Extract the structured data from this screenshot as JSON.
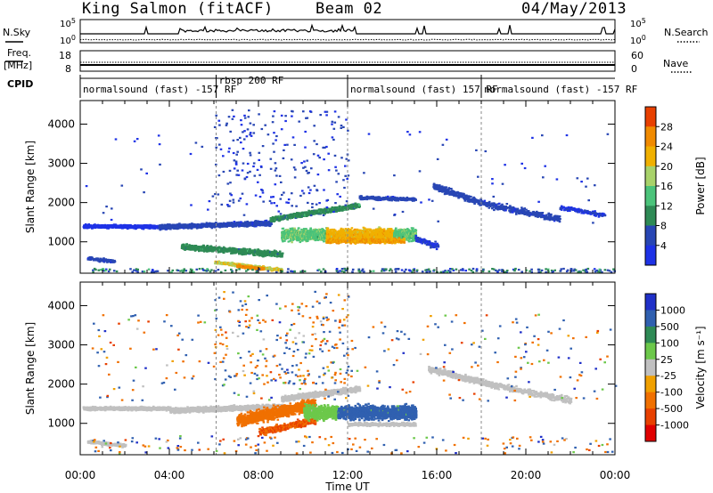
{
  "header": {
    "station": "King Salmon (fitACF)",
    "beam": "Beam 02",
    "date": "04/May/2013"
  },
  "strip": {
    "nsky_label": "N.Sky",
    "nsearch_label": "N.Search",
    "freq_label_1": "Freq.",
    "freq_label_2": "[MHz]",
    "nave_label": "Nave",
    "cpid_label": "CPID",
    "noise_left_ticks": [
      "10^5",
      "10^0"
    ],
    "noise_right_ticks": [
      "10^5",
      "10^0"
    ],
    "freq_ticks": [
      "18",
      "8"
    ],
    "nave_ticks": [
      "60",
      "0"
    ]
  },
  "cpid_segments": [
    {
      "label": "normalsound (fast) -157 RF",
      "start": 0.0,
      "end": 6.1
    },
    {
      "label": "rbsp 200 RF",
      "start": 6.1,
      "end": 12.0
    },
    {
      "label": "normalsound (fast) 157 RF",
      "start": 12.0,
      "end": 18.0
    },
    {
      "label": "normalsound (fast) -157 RF",
      "start": 18.0,
      "end": 24.0
    }
  ],
  "chart_data": [
    {
      "type": "heatmap",
      "name": "power",
      "ylabel": "Slant Range [km]",
      "xlim": [
        0,
        24
      ],
      "ylim": [
        200,
        4600
      ],
      "yticks": [
        "1000",
        "2000",
        "3000",
        "4000"
      ],
      "colorbar_label": "Power [dB]",
      "colorbar_ticks": [
        "4",
        "8",
        "12",
        "16",
        "20",
        "24",
        "28"
      ],
      "colorbar_range": [
        0,
        32
      ],
      "colors": [
        "#1e32e6",
        "#2846b4",
        "#2e8a55",
        "#4bc37a",
        "#a8d26a",
        "#f0b000",
        "#f08a00",
        "#e84000",
        "#e00000"
      ]
    },
    {
      "type": "heatmap",
      "name": "velocity",
      "ylabel": "Slant Range [km]",
      "xlabel": "Time UT",
      "xlim": [
        0,
        24
      ],
      "ylim": [
        200,
        4600
      ],
      "yticks": [
        "1000",
        "2000",
        "3000",
        "4000"
      ],
      "xticks": [
        "00:00",
        "04:00",
        "08:00",
        "12:00",
        "16:00",
        "20:00",
        "00:00"
      ],
      "colorbar_label": "Velocity [m s⁻¹]",
      "colorbar_ticks": [
        "1000",
        "500",
        "100",
        "25",
        "-25",
        "-100",
        "-500",
        "-1000"
      ],
      "colors": [
        "#2030c8",
        "#3060b0",
        "#2e8a55",
        "#6cc84a",
        "#c0c0c0",
        "#f0a000",
        "#f07000",
        "#e84000",
        "#e00000"
      ]
    }
  ]
}
